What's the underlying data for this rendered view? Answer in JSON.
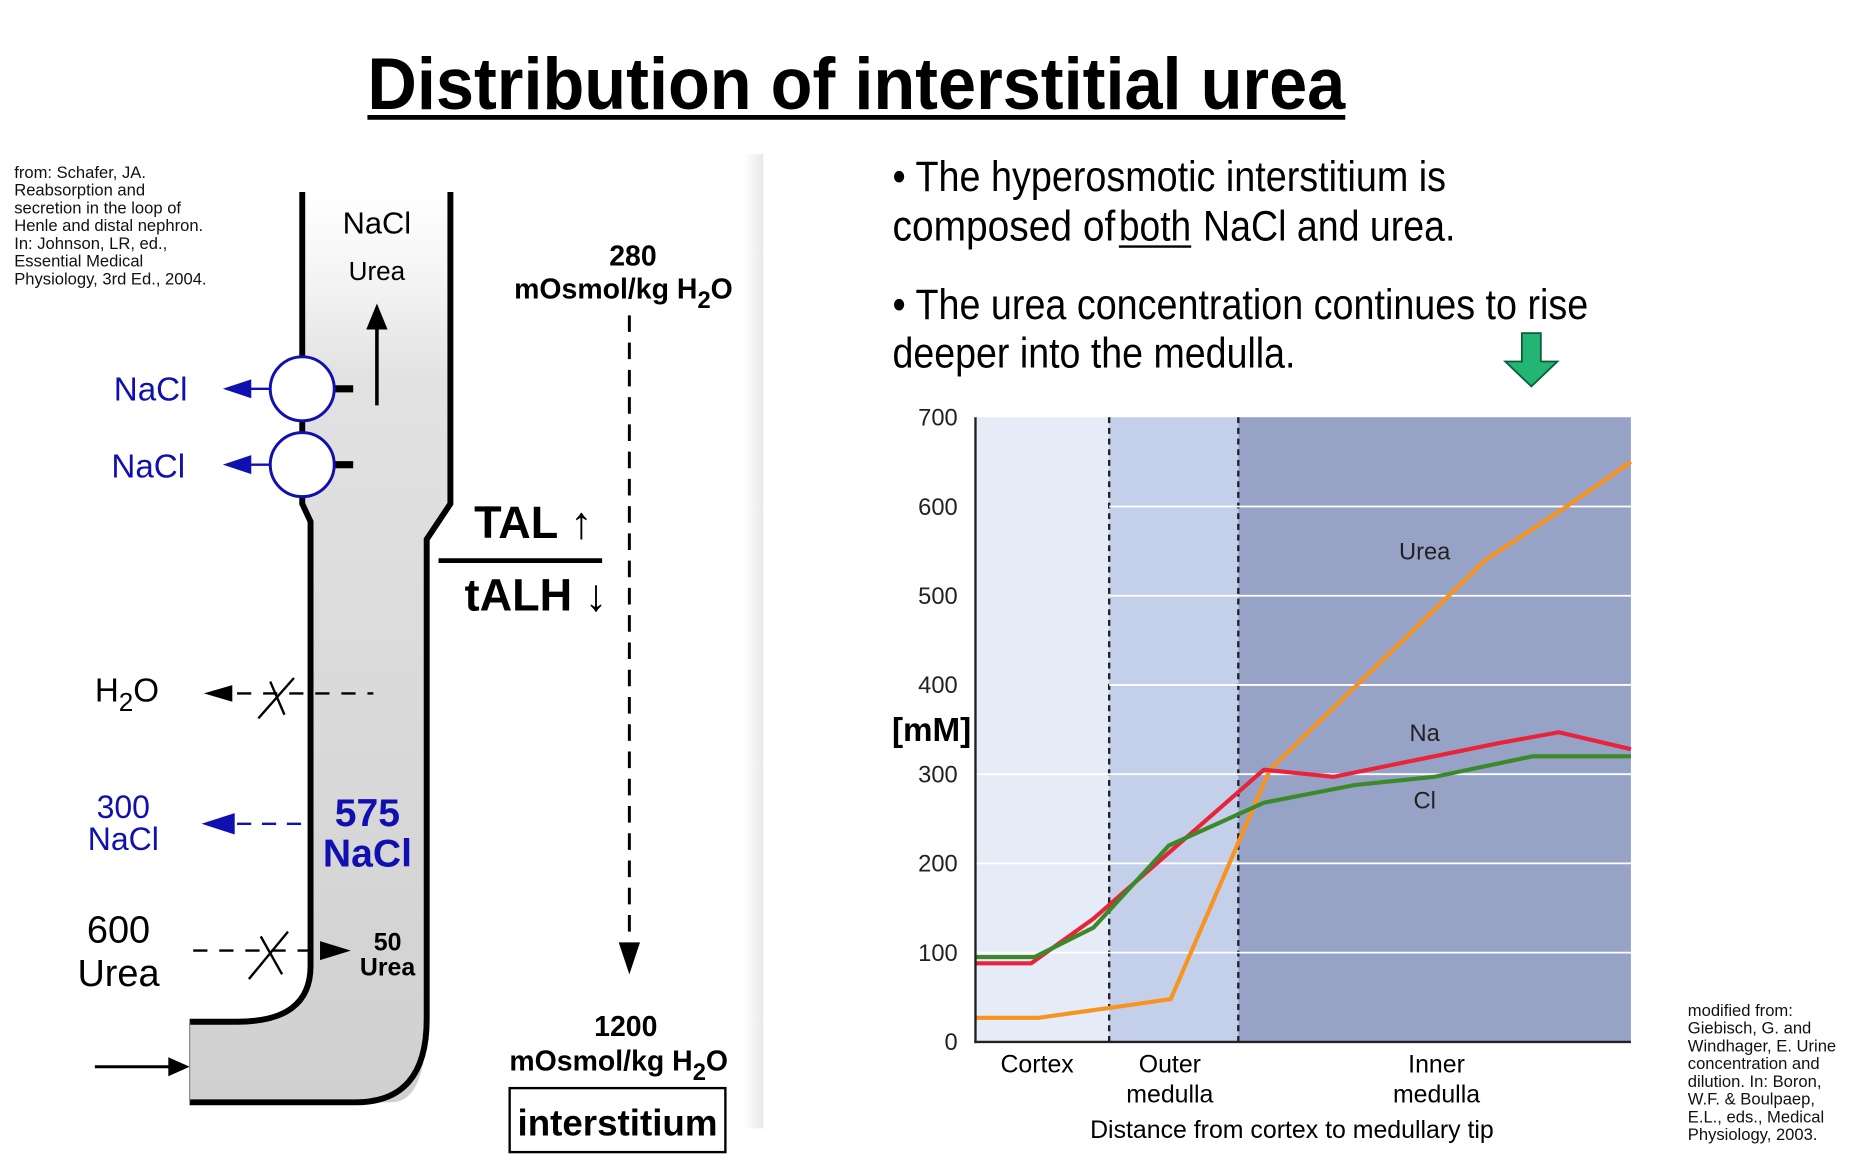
{
  "title": "Distribution of interstitial urea",
  "citation_left": [
    "from: Schafer, JA.",
    "Reabsorption and",
    "secretion in the loop of",
    "Henle and distal nephron.",
    "In: Johnson, LR, ed.,",
    "Essential Medical",
    "Physiology, 3rd Ed., 2004."
  ],
  "citation_right": [
    "modified from:",
    "Giebisch, G. and",
    "Windhager, E. Urine",
    "concentration and",
    "dilution. In: Boron,",
    "W.F. & Boulpaep,",
    "E.L., eds., Medical",
    "Physiology, 2003."
  ],
  "diagram": {
    "tube_top_nacl": "NaCl",
    "tube_top_urea": "Urea",
    "transport_1": "NaCl",
    "transport_2": "NaCl",
    "h2o": "H",
    "h2o_sub": "2",
    "h2o_end": "O",
    "out_nacl_value": "300",
    "out_nacl_label": "NaCl",
    "in_nacl_value": "575",
    "in_nacl_label": "NaCl",
    "out_urea_value": "600",
    "out_urea_label": "Urea",
    "in_urea_value": "50",
    "in_urea_label": "Urea",
    "tal": "TAL ↑",
    "talh": "tALH ↓",
    "top_osm_value": "280",
    "top_osm_unit": "mOsmol/kg H",
    "bottom_osm_value": "1200",
    "bottom_osm_unit": "mOsmol/kg H",
    "osm_sub": "2",
    "osm_end": "O",
    "interstitium": "interstitium"
  },
  "bullets": {
    "b1_line1": "• The hyperosmotic interstitium is",
    "b1_line2a": "composed of",
    "b1_line2b": "both",
    "b1_line2c": "NaCl and urea.",
    "b2_line1": "• The urea concentration continues to rise",
    "b2_line2": "deeper into the medulla."
  },
  "chart_data": {
    "type": "line",
    "title": "",
    "xlabel": "Distance from cortex to medullary tip",
    "ylabel": "[mM]",
    "xlim": [
      0,
      100
    ],
    "ylim": [
      0,
      700
    ],
    "yticks": [
      "0",
      "100",
      "200",
      "300",
      "400",
      "500",
      "600",
      "700"
    ],
    "regions": [
      {
        "name": "Cortex",
        "label": [
          "Cortex"
        ],
        "range": [
          0,
          20.4
        ],
        "color": "#e6ecf7"
      },
      {
        "name": "Outer medulla",
        "label": [
          "Outer",
          "medulla"
        ],
        "range": [
          20.4,
          40.1
        ],
        "color": "#c4cfea"
      },
      {
        "name": "Inner medulla",
        "label": [
          "Inner",
          "medulla"
        ],
        "range": [
          40.1,
          100
        ],
        "color": "#97a2c7"
      }
    ],
    "series": [
      {
        "name": "Urea",
        "color": "#f7931e",
        "x": [
          0,
          9.6,
          20.4,
          29.8,
          44.9,
          77.8,
          90.2,
          100
        ],
        "y": [
          27,
          27,
          38,
          48,
          305,
          540,
          600,
          650
        ]
      },
      {
        "name": "Na",
        "color": "#e8233a",
        "x": [
          0,
          8.5,
          18,
          44,
          54.6,
          80,
          89,
          100
        ],
        "y": [
          88,
          88,
          138,
          305,
          297,
          335,
          347,
          328
        ]
      },
      {
        "name": "Cl",
        "color": "#3a8a2a",
        "x": [
          0,
          9,
          18,
          29.5,
          44,
          58,
          70,
          85,
          100
        ],
        "y": [
          95,
          95,
          128,
          220,
          268,
          288,
          297,
          320,
          320
        ]
      }
    ],
    "series_labels": [
      "Urea",
      "Na",
      "Cl"
    ],
    "grid": true,
    "annotation_arrow_color": "#22b573"
  }
}
